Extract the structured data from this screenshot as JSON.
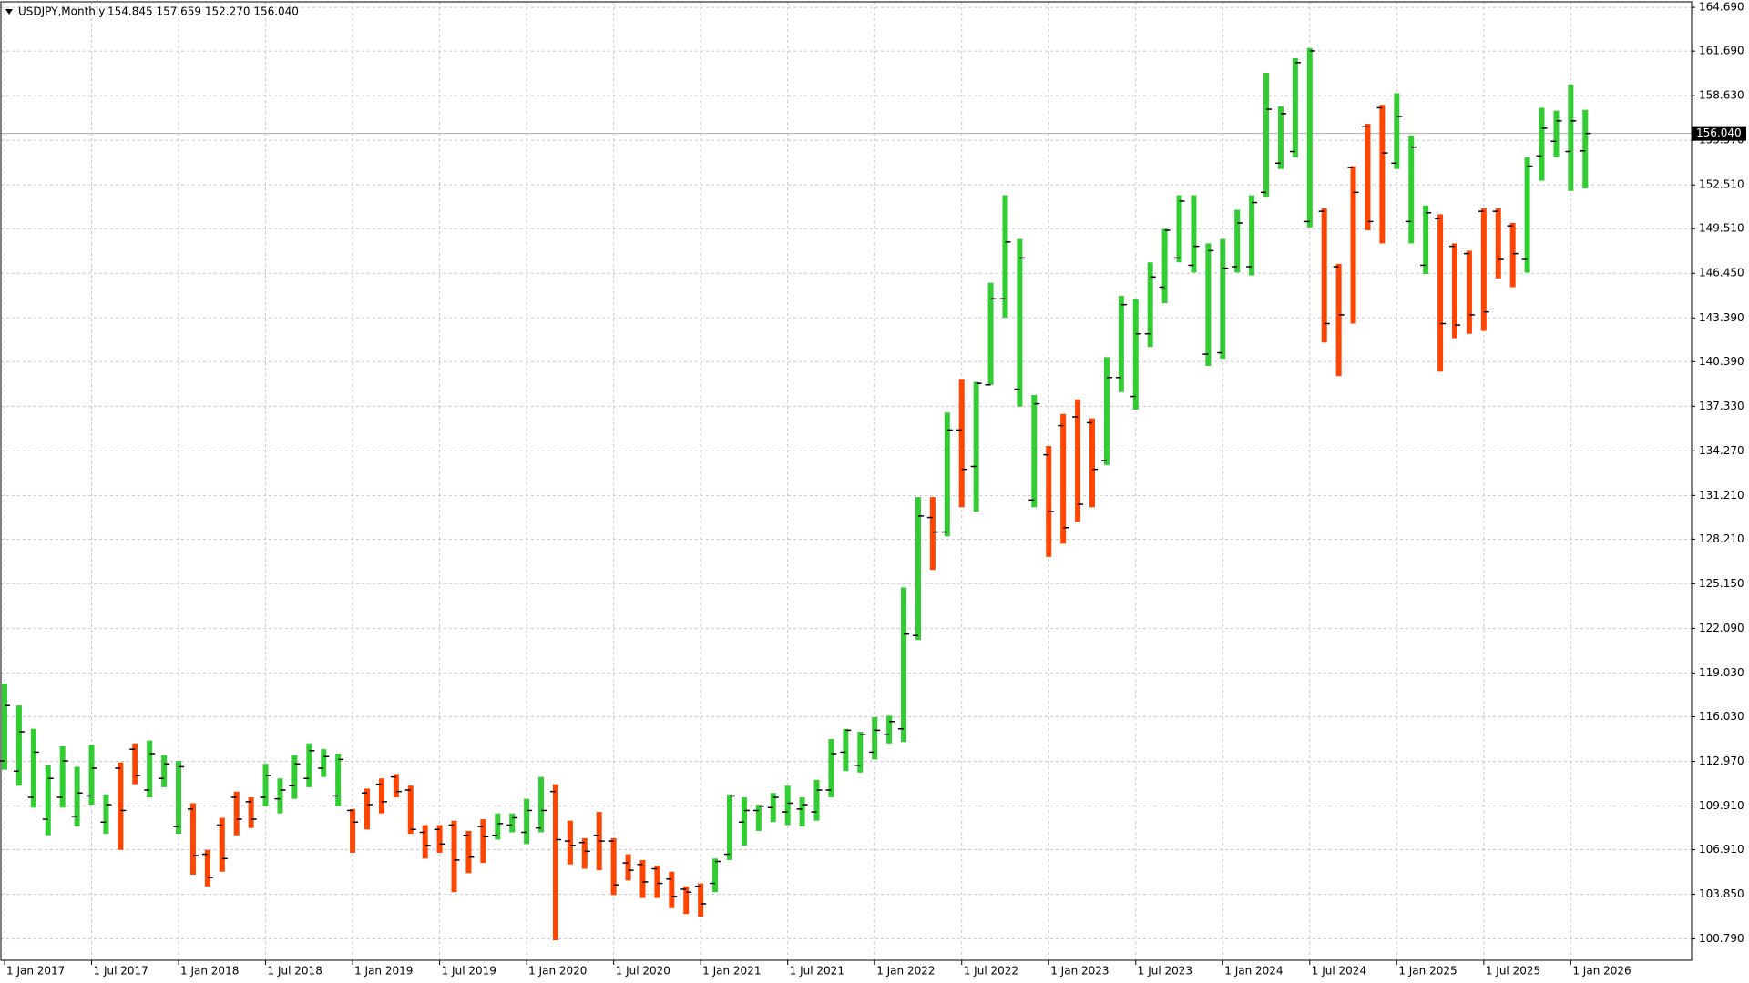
{
  "chart_data": {
    "type": "ohlc",
    "title": "USDJPY,Monthly",
    "quote": "154.845 157.659 152.270 156.040",
    "up_color": "#32cd32",
    "down_color": "#ff4500",
    "grid": true,
    "last_price": {
      "value": 156.04,
      "label": "156.040"
    },
    "ylim": [
      99.64,
      165.07
    ],
    "yticks": [
      {
        "value": 100.79,
        "label": "100.790"
      },
      {
        "value": 103.85,
        "label": "103.850"
      },
      {
        "value": 106.91,
        "label": "106.910"
      },
      {
        "value": 109.91,
        "label": "109.910"
      },
      {
        "value": 112.97,
        "label": "112.970"
      },
      {
        "value": 116.03,
        "label": "116.030"
      },
      {
        "value": 119.03,
        "label": "119.030"
      },
      {
        "value": 122.09,
        "label": "122.090"
      },
      {
        "value": 125.15,
        "label": "125.150"
      },
      {
        "value": 128.21,
        "label": "128.210"
      },
      {
        "value": 131.21,
        "label": "131.210"
      },
      {
        "value": 134.27,
        "label": "134.270"
      },
      {
        "value": 137.33,
        "label": "137.330"
      },
      {
        "value": 140.39,
        "label": "140.390"
      },
      {
        "value": 143.39,
        "label": "143.390"
      },
      {
        "value": 146.45,
        "label": "146.450"
      },
      {
        "value": 149.51,
        "label": "149.510"
      },
      {
        "value": 152.51,
        "label": "152.510"
      },
      {
        "value": 155.57,
        "label": "155.570"
      },
      {
        "value": 158.63,
        "label": "158.630"
      },
      {
        "value": 161.69,
        "label": "161.690"
      },
      {
        "value": 164.69,
        "label": "164.690"
      }
    ],
    "categories": [
      "1 Jan 2017",
      null,
      null,
      null,
      null,
      null,
      "1 Jul 2017",
      null,
      null,
      null,
      null,
      null,
      "1 Jan 2018",
      null,
      null,
      null,
      null,
      null,
      "1 Jul 2018",
      null,
      null,
      null,
      null,
      null,
      "1 Jan 2019",
      null,
      null,
      null,
      null,
      null,
      "1 Jul 2019",
      null,
      null,
      null,
      null,
      null,
      "1 Jan 2020",
      null,
      null,
      null,
      null,
      null,
      "1 Jul 2020",
      null,
      null,
      null,
      null,
      null,
      "1 Jan 2021",
      null,
      null,
      null,
      null,
      null,
      "1 Jul 2021",
      null,
      null,
      null,
      null,
      null,
      "1 Jan 2022",
      null,
      null,
      null,
      null,
      null,
      "1 Jul 2022",
      null,
      null,
      null,
      null,
      null,
      "1 Jan 2023",
      null,
      null,
      null,
      null,
      null,
      "1 Jul 2023",
      null,
      null,
      null,
      null,
      null,
      "1 Jan 2024",
      null,
      null,
      null,
      null,
      null,
      "1 Jul 2024",
      null,
      null,
      null,
      null,
      null,
      "1 Jan 2025",
      null,
      null,
      null,
      null,
      null,
      "1 Jul 2025",
      null,
      null,
      null,
      null,
      null,
      "1 Jan 2026",
      null
    ],
    "bars": [
      [
        113.0,
        118.3,
        112.4,
        116.8
      ],
      [
        112.3,
        116.8,
        111.3,
        115.0
      ],
      [
        110.5,
        115.2,
        109.8,
        113.6
      ],
      [
        109.0,
        112.7,
        107.9,
        111.8
      ],
      [
        110.5,
        114.0,
        109.8,
        113.0
      ],
      [
        109.2,
        112.6,
        108.5,
        110.8
      ],
      [
        110.6,
        114.1,
        110.0,
        112.5
      ],
      [
        108.8,
        110.7,
        108.0,
        110.0
      ],
      [
        112.5,
        112.9,
        106.9,
        109.6
      ],
      [
        113.8,
        114.2,
        111.4,
        112.0
      ],
      [
        111.0,
        114.4,
        110.5,
        113.5
      ],
      [
        111.8,
        113.4,
        111.2,
        112.8
      ],
      [
        108.5,
        113.0,
        108.0,
        112.6
      ],
      [
        109.7,
        110.1,
        105.2,
        106.5
      ],
      [
        106.6,
        106.9,
        104.4,
        105.0
      ],
      [
        108.6,
        109.1,
        105.4,
        106.3
      ],
      [
        110.5,
        110.9,
        107.9,
        109.0
      ],
      [
        110.2,
        110.5,
        108.4,
        109.0
      ],
      [
        110.5,
        112.8,
        109.9,
        112.0
      ],
      [
        110.4,
        111.8,
        109.4,
        111.0
      ],
      [
        111.3,
        113.4,
        110.4,
        112.8
      ],
      [
        111.8,
        114.2,
        111.2,
        113.7
      ],
      [
        112.5,
        113.8,
        111.9,
        113.3
      ],
      [
        110.6,
        113.5,
        109.9,
        113.1
      ],
      [
        109.6,
        109.7,
        106.7,
        108.8
      ],
      [
        110.8,
        111.1,
        108.3,
        110.0
      ],
      [
        111.4,
        111.8,
        109.4,
        110.2
      ],
      [
        111.9,
        112.1,
        110.5,
        110.9
      ],
      [
        111.0,
        111.3,
        108.0,
        108.3
      ],
      [
        108.1,
        108.6,
        106.3,
        107.2
      ],
      [
        108.3,
        108.6,
        106.7,
        107.3
      ],
      [
        108.6,
        108.9,
        104.0,
        106.2
      ],
      [
        107.9,
        108.2,
        105.3,
        106.4
      ],
      [
        108.5,
        109.0,
        106.0,
        107.8
      ],
      [
        107.9,
        109.4,
        107.6,
        108.7
      ],
      [
        108.6,
        109.4,
        108.1,
        109.1
      ],
      [
        108.1,
        110.4,
        107.3,
        109.6
      ],
      [
        108.4,
        111.9,
        108.1,
        109.6
      ],
      [
        110.9,
        111.4,
        100.7,
        107.6
      ],
      [
        107.5,
        108.9,
        105.9,
        107.2
      ],
      [
        107.4,
        107.7,
        105.6,
        106.8
      ],
      [
        107.9,
        109.5,
        105.5,
        107.5
      ],
      [
        107.5,
        107.7,
        103.8,
        104.5
      ],
      [
        106.0,
        106.6,
        104.8,
        105.5
      ],
      [
        105.9,
        106.2,
        103.6,
        104.7
      ],
      [
        105.6,
        105.8,
        103.6,
        104.6
      ],
      [
        104.9,
        105.4,
        102.9,
        103.7
      ],
      [
        104.2,
        104.4,
        102.5,
        104.0
      ],
      [
        104.4,
        104.6,
        102.3,
        103.2
      ],
      [
        104.6,
        106.3,
        104.0,
        106.1
      ],
      [
        106.6,
        110.7,
        106.2,
        110.6
      ],
      [
        108.8,
        110.5,
        107.2,
        109.6
      ],
      [
        109.6,
        110.0,
        108.2,
        109.9
      ],
      [
        109.8,
        110.8,
        108.8,
        110.5
      ],
      [
        109.5,
        111.3,
        108.6,
        110.1
      ],
      [
        109.7,
        110.5,
        108.5,
        110.0
      ],
      [
        109.5,
        111.7,
        108.9,
        111.0
      ],
      [
        111.0,
        114.5,
        110.5,
        113.5
      ],
      [
        113.6,
        115.2,
        112.3,
        115.1
      ],
      [
        112.7,
        115.0,
        112.2,
        114.8
      ],
      [
        113.6,
        116.0,
        113.1,
        115.1
      ],
      [
        114.8,
        116.1,
        114.2,
        115.7
      ],
      [
        115.2,
        124.9,
        114.3,
        121.7
      ],
      [
        121.6,
        131.1,
        121.3,
        129.8
      ],
      [
        129.7,
        131.1,
        126.1,
        128.7
      ],
      [
        128.7,
        136.9,
        128.4,
        135.7
      ],
      [
        135.7,
        139.2,
        130.4,
        133.0
      ],
      [
        133.2,
        139.0,
        130.1,
        138.9
      ],
      [
        138.8,
        145.8,
        138.8,
        144.7
      ],
      [
        144.7,
        151.8,
        143.4,
        148.6
      ],
      [
        138.5,
        148.8,
        137.3,
        147.5
      ],
      [
        130.9,
        138.1,
        130.4,
        137.5
      ],
      [
        134.0,
        134.6,
        127.0,
        130.1
      ],
      [
        136.0,
        136.8,
        127.9,
        129.0
      ],
      [
        136.6,
        137.8,
        129.4,
        130.6
      ],
      [
        136.2,
        136.5,
        130.4,
        133.0
      ],
      [
        133.6,
        140.7,
        133.3,
        139.3
      ],
      [
        139.3,
        144.9,
        138.3,
        144.3
      ],
      [
        138.0,
        144.7,
        137.1,
        142.3
      ],
      [
        142.3,
        147.2,
        141.4,
        146.2
      ],
      [
        145.5,
        149.5,
        144.4,
        149.4
      ],
      [
        147.5,
        151.8,
        147.2,
        151.4
      ],
      [
        147.0,
        151.8,
        146.5,
        148.3
      ],
      [
        140.9,
        148.5,
        140.1,
        148.0
      ],
      [
        141.0,
        148.8,
        140.6,
        146.8
      ],
      [
        146.9,
        150.8,
        146.5,
        149.9
      ],
      [
        146.9,
        151.8,
        146.3,
        151.3
      ],
      [
        152.0,
        160.2,
        151.7,
        157.7
      ],
      [
        154.0,
        157.9,
        153.6,
        157.4
      ],
      [
        154.8,
        161.2,
        154.4,
        160.9
      ],
      [
        150.0,
        161.9,
        149.6,
        161.7
      ],
      [
        150.7,
        150.9,
        141.7,
        143.0
      ],
      [
        146.9,
        147.1,
        139.4,
        143.6
      ],
      [
        153.7,
        153.8,
        143.0,
        152.0
      ],
      [
        156.5,
        156.7,
        149.4,
        150.0
      ],
      [
        157.8,
        158.0,
        148.5,
        154.7
      ],
      [
        154.0,
        158.8,
        153.6,
        157.2
      ],
      [
        150.0,
        155.9,
        148.5,
        155.1
      ],
      [
        147.0,
        151.1,
        146.4,
        150.6
      ],
      [
        150.2,
        150.5,
        139.7,
        143.0
      ],
      [
        148.3,
        148.5,
        142.0,
        142.9
      ],
      [
        147.8,
        148.0,
        142.3,
        143.6
      ],
      [
        150.7,
        150.9,
        142.5,
        143.8
      ],
      [
        150.7,
        150.9,
        146.1,
        147.4
      ],
      [
        149.7,
        149.9,
        145.5,
        147.8
      ],
      [
        147.4,
        154.4,
        146.5,
        153.8
      ],
      [
        154.5,
        157.8,
        152.8,
        156.4
      ],
      [
        155.5,
        157.6,
        154.4,
        156.9
      ],
      [
        154.8,
        159.4,
        152.1,
        156.9
      ],
      [
        154.845,
        157.659,
        152.27,
        156.04
      ]
    ]
  }
}
